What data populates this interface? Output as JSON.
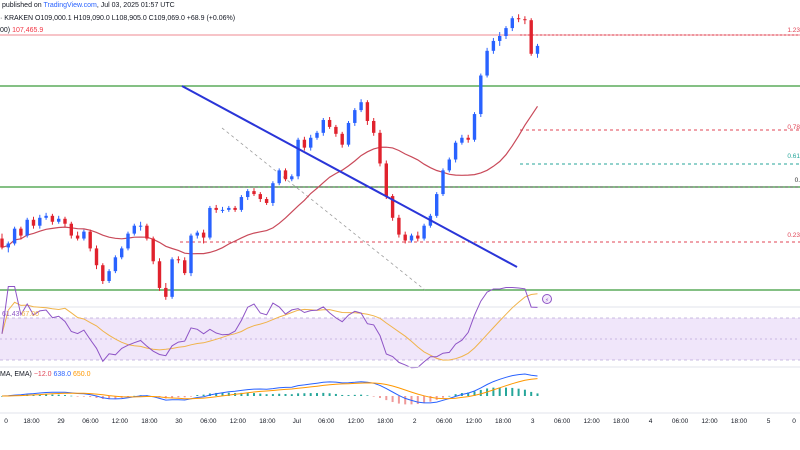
{
  "header": {
    "watermark_prefix": "published on ",
    "watermark_site": "TradingView.com",
    "watermark_date": ", Jul 03, 2025 01:57 UTC",
    "exchange": "· KRAKEN",
    "ohlc": "O109,000.1  H109,090.0  L108,905.0  C109,069.0  +68.9 (+0.06%)",
    "ma_tag": "00)",
    "ma_value": "107,465.9"
  },
  "colors": {
    "up": "#2962ff",
    "down": "#e0222d",
    "ma": "#c94a5a",
    "trend": "#2a35d8",
    "support": "#3a9b3a",
    "resistance": "#e04455",
    "rsi": "#8e54c6",
    "rsi_ma": "#f0b34a",
    "macd": "#2962ff",
    "signal": "#ff9800",
    "hist": "#26a69a"
  },
  "fib_labels": [
    "1.23",
    "0.78",
    "0.61",
    "0.",
    "0.23"
  ],
  "rsi_legend": {
    "value1": "61.43",
    "value2": "67.00"
  },
  "macd_legend": {
    "name": "MA, EMA)",
    "value1": "−12.0",
    "value2": "638.0",
    "value3": "650.0"
  },
  "x_ticks": [
    "0",
    "18:00",
    "29",
    "06:00",
    "12:00",
    "18:00",
    "30",
    "06:00",
    "12:00",
    "18:00",
    "Jul",
    "06:00",
    "12:00",
    "18:00",
    "2",
    "06:00",
    "12:00",
    "18:00",
    "3",
    "06:00",
    "12:00",
    "18:00",
    "4",
    "06:00",
    "12:00",
    "18:00",
    "5",
    "0"
  ],
  "chart_data": {
    "type": "candlestick",
    "candles": [
      [
        145,
        136,
        150,
        134
      ],
      [
        136,
        140,
        142,
        131
      ],
      [
        140,
        155,
        157,
        138
      ],
      [
        155,
        148,
        157,
        144
      ],
      [
        148,
        164,
        166,
        146
      ],
      [
        164,
        158,
        167,
        155
      ],
      [
        158,
        166,
        169,
        155
      ],
      [
        166,
        168,
        171,
        164
      ],
      [
        168,
        162,
        170,
        159
      ],
      [
        162,
        165,
        168,
        160
      ],
      [
        165,
        160,
        167,
        157
      ],
      [
        160,
        148,
        162,
        145
      ],
      [
        148,
        145,
        152,
        143
      ],
      [
        145,
        152,
        154,
        143
      ],
      [
        152,
        135,
        154,
        132
      ],
      [
        135,
        118,
        138,
        114
      ],
      [
        118,
        102,
        120,
        99
      ],
      [
        102,
        112,
        114,
        100
      ],
      [
        112,
        126,
        128,
        110
      ],
      [
        126,
        135,
        137,
        124
      ],
      [
        135,
        150,
        152,
        133
      ],
      [
        150,
        158,
        160,
        148
      ],
      [
        158,
        158,
        162,
        153
      ],
      [
        158,
        145,
        160,
        143
      ],
      [
        145,
        122,
        147,
        119
      ],
      [
        122,
        95,
        125,
        92
      ],
      [
        95,
        86,
        100,
        83
      ],
      [
        86,
        124,
        126,
        84
      ],
      [
        124,
        123,
        127,
        120
      ],
      [
        123,
        110,
        126,
        108
      ],
      [
        110,
        148,
        150,
        107
      ],
      [
        148,
        151,
        153,
        145
      ],
      [
        151,
        146,
        154,
        140
      ],
      [
        146,
        176,
        178,
        144
      ],
      [
        176,
        174,
        179,
        171
      ],
      [
        174,
        174,
        177,
        171
      ],
      [
        174,
        176,
        178,
        172
      ],
      [
        176,
        174,
        178,
        172
      ],
      [
        174,
        187,
        189,
        172
      ],
      [
        187,
        193,
        195,
        184
      ],
      [
        193,
        190,
        196,
        188
      ],
      [
        190,
        185,
        192,
        182
      ],
      [
        185,
        181,
        187,
        179
      ],
      [
        181,
        201,
        203,
        178
      ],
      [
        201,
        214,
        216,
        199
      ],
      [
        214,
        205,
        216,
        203
      ],
      [
        205,
        208,
        210,
        203
      ],
      [
        208,
        245,
        247,
        205
      ],
      [
        245,
        237,
        248,
        234
      ],
      [
        237,
        247,
        250,
        234
      ],
      [
        247,
        252,
        254,
        245
      ],
      [
        252,
        265,
        267,
        249
      ],
      [
        265,
        258,
        268,
        256
      ],
      [
        258,
        251,
        260,
        248
      ],
      [
        251,
        240,
        253,
        237
      ],
      [
        240,
        262,
        264,
        238
      ],
      [
        262,
        275,
        277,
        259
      ],
      [
        275,
        283,
        286,
        273
      ],
      [
        283,
        264,
        285,
        260
      ],
      [
        264,
        252,
        267,
        249
      ],
      [
        252,
        221,
        255,
        218
      ],
      [
        221,
        188,
        224,
        185
      ],
      [
        188,
        166,
        190,
        163
      ],
      [
        166,
        149,
        169,
        146
      ],
      [
        149,
        143,
        152,
        140
      ],
      [
        143,
        148,
        150,
        141
      ],
      [
        148,
        145,
        152,
        142
      ],
      [
        145,
        158,
        160,
        143
      ],
      [
        158,
        168,
        170,
        156
      ],
      [
        168,
        190,
        192,
        166
      ],
      [
        190,
        214,
        216,
        188
      ],
      [
        214,
        225,
        227,
        212
      ],
      [
        225,
        242,
        244,
        222
      ],
      [
        242,
        247,
        250,
        240
      ],
      [
        247,
        245,
        250,
        242
      ],
      [
        245,
        271,
        273,
        243
      ],
      [
        271,
        310,
        312,
        268
      ],
      [
        310,
        335,
        338,
        308
      ],
      [
        335,
        345,
        348,
        332
      ],
      [
        345,
        350,
        354,
        340
      ],
      [
        350,
        358,
        360,
        347
      ],
      [
        358,
        368,
        370,
        355
      ],
      [
        368,
        367,
        372,
        364
      ],
      [
        367,
        366,
        370,
        362
      ],
      [
        366,
        332,
        368,
        330
      ],
      [
        332,
        340,
        342,
        328
      ]
    ]
  }
}
